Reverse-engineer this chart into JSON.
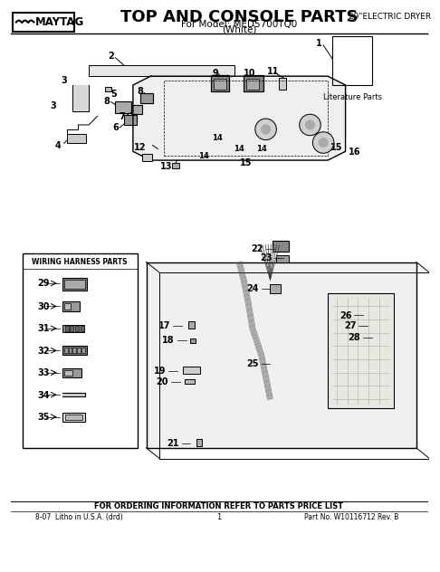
{
  "title": "TOP AND CONSOLE PARTS",
  "subtitle1": "For Model: MED5700TQ0",
  "subtitle2": "(White)",
  "brand": "MAYTAG",
  "dryer_type": "29\"ELECTRIC DRYER",
  "footer_left": "8-07  Litho in U.S.A. (drd)",
  "footer_center": "1",
  "footer_right": "Part No. W10116712 Rev. B",
  "footer_order": "FOR ORDERING INFORMATION REFER TO PARTS PRICE LIST",
  "lit_parts_label": "Literature Parts",
  "wiring_box_title": "WIRING HARNESS PARTS",
  "bg_color": "#ffffff",
  "line_color": "#000000",
  "gray_color": "#888888",
  "light_gray": "#cccccc",
  "part_numbers_top": [
    1,
    2,
    3,
    4,
    5,
    6,
    7,
    8,
    9,
    10,
    11,
    12,
    13,
    14,
    15,
    16
  ],
  "part_numbers_bottom": [
    17,
    18,
    19,
    20,
    21,
    22,
    23,
    24,
    25,
    26,
    27,
    28,
    29,
    30,
    31,
    32,
    33,
    34,
    35
  ]
}
